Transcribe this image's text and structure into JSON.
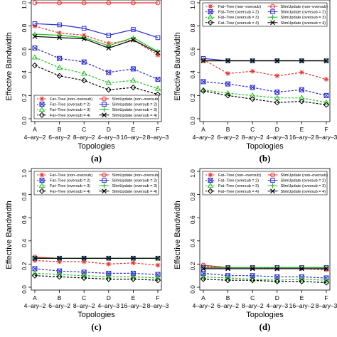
{
  "figure": {
    "x_title": "Topologies",
    "y_title": "Effective Bandwidth",
    "categories": [
      "A",
      "B",
      "C",
      "D",
      "E",
      "F"
    ],
    "category_sublabels": [
      "4–ary–2",
      "6–ary–2",
      "8–ary–2",
      "4–ary–3",
      "16–ary–2",
      "8–ary–3"
    ],
    "y_ticks": [
      "0.0",
      "0.2",
      "0.4",
      "0.6",
      "0.8",
      "1.0"
    ],
    "legend": [
      {
        "name": "Fat–Tree (non–oversub)",
        "color": "#e8302e",
        "marker": "star",
        "dash": "dashed"
      },
      {
        "name": "SlimUpdate (non–oversub)",
        "color": "#e8302e",
        "marker": "circle",
        "dash": "solid"
      },
      {
        "name": "Fat–Tree (oversub = 2)",
        "color": "#2b2bd8",
        "marker": "xbox",
        "dash": "dashed"
      },
      {
        "name": "SlimUpdate (oversub = 2)",
        "color": "#2b2bd8",
        "marker": "square",
        "dash": "solid"
      },
      {
        "name": "Fat–Tree (oversub = 3)",
        "color": "#21c021",
        "marker": "triangle",
        "dash": "dashed"
      },
      {
        "name": "SlimUpdate (oversub = 3)",
        "color": "#21c021",
        "marker": "plus",
        "dash": "solid"
      },
      {
        "name": "Fat–Tree (oversub = 4)",
        "color": "#000000",
        "marker": "diamond",
        "dash": "dashed"
      },
      {
        "name": "SlimUpdate (oversub = 4)",
        "color": "#000000",
        "marker": "xmark",
        "dash": "solid"
      }
    ]
  },
  "chart_data": [
    {
      "type": "line",
      "caption": "(a)",
      "ylim": [
        0,
        1
      ],
      "legend_position": "bottom-left",
      "series": [
        {
          "name": "Fat–Tree (non–oversub)",
          "values": [
            0.8,
            0.74,
            0.72,
            0.65,
            0.68,
            0.55
          ]
        },
        {
          "name": "SlimUpdate (non–oversub)",
          "values": [
            1.0,
            1.0,
            1.0,
            1.0,
            1.0,
            1.0
          ]
        },
        {
          "name": "Fat–Tree (oversub = 2)",
          "values": [
            0.61,
            0.52,
            0.49,
            0.4,
            0.43,
            0.34
          ]
        },
        {
          "name": "SlimUpdate (oversub = 2)",
          "values": [
            0.82,
            0.81,
            0.78,
            0.72,
            0.77,
            0.7
          ]
        },
        {
          "name": "Fat–Tree (oversub = 3)",
          "values": [
            0.53,
            0.44,
            0.39,
            0.31,
            0.33,
            0.26
          ]
        },
        {
          "name": "SlimUpdate (oversub = 3)",
          "values": [
            0.73,
            0.72,
            0.7,
            0.63,
            0.7,
            0.58
          ]
        },
        {
          "name": "Fat–Tree (oversub = 4)",
          "values": [
            0.46,
            0.37,
            0.33,
            0.25,
            0.27,
            0.21
          ]
        },
        {
          "name": "SlimUpdate (oversub = 4)",
          "values": [
            0.71,
            0.7,
            0.69,
            0.61,
            0.68,
            0.57
          ]
        }
      ]
    },
    {
      "type": "line",
      "caption": "(b)",
      "ylim": [
        0,
        1
      ],
      "legend_position": "top",
      "series": [
        {
          "name": "Fat–Tree (non–oversub)",
          "values": [
            0.51,
            0.39,
            0.41,
            0.37,
            0.4,
            0.34
          ]
        },
        {
          "name": "SlimUpdate (non–oversub)",
          "values": [
            0.5,
            0.5,
            0.5,
            0.5,
            0.5,
            0.5
          ]
        },
        {
          "name": "Fat–Tree (oversub = 2)",
          "values": [
            0.32,
            0.3,
            0.27,
            0.23,
            0.25,
            0.2
          ]
        },
        {
          "name": "SlimUpdate (oversub = 2)",
          "values": [
            0.52,
            0.5,
            0.5,
            0.5,
            0.5,
            0.5
          ]
        },
        {
          "name": "Fat–Tree (oversub = 3)",
          "values": [
            0.25,
            0.22,
            0.2,
            0.18,
            0.18,
            0.14
          ]
        },
        {
          "name": "SlimUpdate (oversub = 3)",
          "values": [
            0.5,
            0.5,
            0.5,
            0.5,
            0.5,
            0.5
          ]
        },
        {
          "name": "Fat–Tree (oversub = 4)",
          "values": [
            0.24,
            0.2,
            0.17,
            0.14,
            0.15,
            0.12
          ]
        },
        {
          "name": "SlimUpdate (oversub = 4)",
          "values": [
            0.5,
            0.5,
            0.5,
            0.5,
            0.5,
            0.5
          ]
        }
      ]
    },
    {
      "type": "line",
      "caption": "(c)",
      "ylim": [
        0,
        1
      ],
      "legend_position": "top",
      "series": [
        {
          "name": "Fat–Tree (non–oversub)",
          "values": [
            0.23,
            0.22,
            0.22,
            0.2,
            0.21,
            0.19
          ]
        },
        {
          "name": "SlimUpdate (non–oversub)",
          "values": [
            0.26,
            0.25,
            0.25,
            0.25,
            0.25,
            0.25
          ]
        },
        {
          "name": "Fat–Tree (oversub = 2)",
          "values": [
            0.16,
            0.14,
            0.13,
            0.12,
            0.12,
            0.11
          ]
        },
        {
          "name": "SlimUpdate (oversub = 2)",
          "values": [
            0.25,
            0.25,
            0.25,
            0.25,
            0.25,
            0.25
          ]
        },
        {
          "name": "Fat–Tree (oversub = 3)",
          "values": [
            0.12,
            0.11,
            0.1,
            0.09,
            0.09,
            0.08
          ]
        },
        {
          "name": "SlimUpdate (oversub = 3)",
          "values": [
            0.25,
            0.25,
            0.25,
            0.25,
            0.25,
            0.25
          ]
        },
        {
          "name": "Fat–Tree (oversub = 4)",
          "values": [
            0.1,
            0.09,
            0.08,
            0.07,
            0.07,
            0.06
          ]
        },
        {
          "name": "SlimUpdate (oversub = 4)",
          "values": [
            0.25,
            0.25,
            0.25,
            0.25,
            0.25,
            0.25
          ]
        }
      ]
    },
    {
      "type": "line",
      "caption": "(d)",
      "ylim": [
        0,
        1
      ],
      "legend_position": "top",
      "series": [
        {
          "name": "Fat–Tree (non–oversub)",
          "values": [
            0.18,
            0.17,
            0.17,
            0.16,
            0.16,
            0.15
          ]
        },
        {
          "name": "SlimUpdate (non–oversub)",
          "values": [
            0.19,
            0.17,
            0.17,
            0.17,
            0.17,
            0.17
          ]
        },
        {
          "name": "Fat–Tree (oversub = 2)",
          "values": [
            0.12,
            0.1,
            0.1,
            0.09,
            0.09,
            0.08
          ]
        },
        {
          "name": "SlimUpdate (oversub = 2)",
          "values": [
            0.17,
            0.17,
            0.17,
            0.17,
            0.17,
            0.17
          ]
        },
        {
          "name": "Fat–Tree (oversub = 3)",
          "values": [
            0.09,
            0.08,
            0.07,
            0.06,
            0.07,
            0.06
          ]
        },
        {
          "name": "SlimUpdate (oversub = 3)",
          "values": [
            0.17,
            0.17,
            0.17,
            0.17,
            0.17,
            0.17
          ]
        },
        {
          "name": "Fat–Tree (oversub = 4)",
          "values": [
            0.07,
            0.06,
            0.06,
            0.05,
            0.05,
            0.04
          ]
        },
        {
          "name": "SlimUpdate (oversub = 4)",
          "values": [
            0.16,
            0.16,
            0.16,
            0.16,
            0.16,
            0.16
          ]
        }
      ]
    }
  ]
}
